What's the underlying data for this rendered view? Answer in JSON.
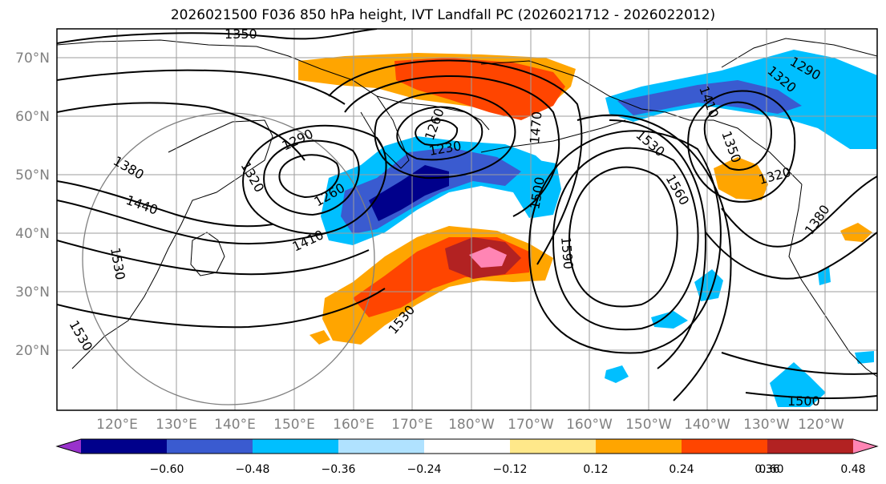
{
  "title": "2026021500 F036 850 hPa height, IVT Landfall PC (2026021712 - 2026022012)",
  "map": {
    "lon_labels": [
      "120°E",
      "130°E",
      "140°E",
      "150°E",
      "160°E",
      "170°E",
      "180°W",
      "170°W",
      "160°W",
      "150°W",
      "140°W",
      "130°W",
      "120°W"
    ],
    "lat_labels": [
      "70°N",
      "60°N",
      "50°N",
      "40°N",
      "30°N",
      "20°N"
    ],
    "contour_labels": [
      "1350",
      "1290",
      "1320",
      "1380",
      "1440",
      "1530",
      "1530",
      "1260",
      "1230",
      "1260",
      "1410",
      "1470",
      "1500",
      "1590",
      "1530",
      "1560",
      "1410",
      "1290",
      "1320",
      "1350",
      "1320",
      "1380",
      "1530",
      "1500"
    ]
  },
  "colorbar": {
    "tick_labels": [
      "−0.60",
      "−0.48",
      "−0.36",
      "−0.24",
      "−0.12",
      "0.12",
      "0.24",
      "0.36",
      "0.48",
      "0.60"
    ],
    "colors": [
      "#9932cc",
      "#00008b",
      "#3a5bd0",
      "#00bfff",
      "#b0e2ff",
      "#ffffff",
      "#ffe88a",
      "#ffa500",
      "#ff4500",
      "#b22222",
      "#ff85b4"
    ]
  }
}
